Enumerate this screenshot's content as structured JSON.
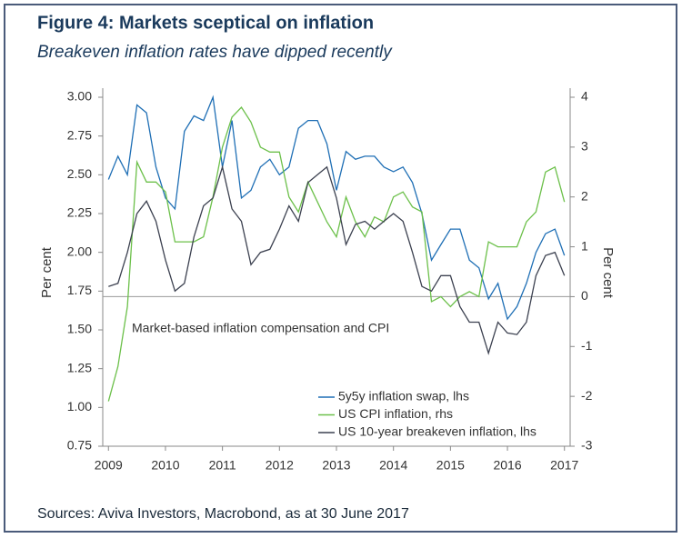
{
  "chart_data": {
    "type": "line",
    "title": "Figure 4: Markets sceptical on inflation",
    "subtitle": "Breakeven inflation rates have dipped recently",
    "annotation": "Market-based inflation compensation and CPI",
    "source": "Sources: Aviva Investors, Macrobond, as at 30 June 2017",
    "ylabel": "Per cent",
    "y2label": "Per cent",
    "xlim": [
      2008.9,
      2017.1
    ],
    "xticks": [
      2009,
      2010,
      2011,
      2012,
      2013,
      2014,
      2015,
      2016,
      2017
    ],
    "ylim": [
      0.75,
      3.0
    ],
    "yticks": [
      {
        "value": 0.75,
        "label": "0.75"
      },
      {
        "value": 1.0,
        "label": "1.00"
      },
      {
        "value": 1.25,
        "label": "1.25"
      },
      {
        "value": 1.5,
        "label": "1.50"
      },
      {
        "value": 1.75,
        "label": "1.75"
      },
      {
        "value": 2.0,
        "label": "2.00"
      },
      {
        "value": 2.25,
        "label": "2.25"
      },
      {
        "value": 2.5,
        "label": "2.50"
      },
      {
        "value": 2.75,
        "label": "2.75"
      },
      {
        "value": 3.0,
        "label": "3.00"
      }
    ],
    "y2lim": [
      -3,
      4
    ],
    "y2ticks": [
      -3,
      -2,
      -1,
      0,
      1,
      2,
      3,
      4
    ],
    "zero_line": true,
    "legend": "lower right",
    "x": [
      2009,
      2009.167,
      2009.333,
      2009.5,
      2009.667,
      2009.833,
      2010,
      2010.167,
      2010.333,
      2010.5,
      2010.667,
      2010.833,
      2011,
      2011.167,
      2011.333,
      2011.5,
      2011.667,
      2011.833,
      2012,
      2012.167,
      2012.333,
      2012.5,
      2012.667,
      2012.833,
      2013,
      2013.167,
      2013.333,
      2013.5,
      2013.667,
      2013.833,
      2014,
      2014.167,
      2014.333,
      2014.5,
      2014.667,
      2014.833,
      2015,
      2015.167,
      2015.333,
      2015.5,
      2015.667,
      2015.833,
      2016,
      2016.167,
      2016.333,
      2016.5,
      2016.667,
      2016.833,
      2017
    ],
    "series": [
      {
        "name": "5y5y inflation swap, lhs",
        "color": "#1f6fb5",
        "axis": "y",
        "values": [
          2.47,
          2.62,
          2.5,
          2.95,
          2.9,
          2.55,
          2.35,
          2.28,
          2.78,
          2.88,
          2.85,
          3.0,
          2.55,
          2.85,
          2.35,
          2.4,
          2.55,
          2.6,
          2.5,
          2.55,
          2.8,
          2.85,
          2.85,
          2.7,
          2.4,
          2.65,
          2.6,
          2.62,
          2.62,
          2.55,
          2.52,
          2.55,
          2.45,
          2.25,
          1.95,
          2.05,
          2.15,
          2.15,
          1.95,
          1.9,
          1.7,
          1.8,
          1.57,
          1.65,
          1.8,
          2.0,
          2.12,
          2.15,
          1.98
        ]
      },
      {
        "name": "US CPI inflation, rhs",
        "color": "#6cc04a",
        "axis": "y2",
        "values": [
          -2.1,
          -1.4,
          -0.2,
          2.7,
          2.3,
          2.3,
          2.1,
          1.1,
          1.1,
          1.1,
          1.2,
          2.0,
          3.0,
          3.6,
          3.8,
          3.5,
          3.0,
          2.9,
          2.9,
          2.0,
          1.7,
          2.3,
          1.9,
          1.5,
          1.2,
          2.0,
          1.5,
          1.2,
          1.6,
          1.5,
          2.0,
          2.1,
          1.8,
          1.7,
          -0.1,
          0.0,
          -0.2,
          0.0,
          0.1,
          0.0,
          1.1,
          1.0,
          1.0,
          1.0,
          1.5,
          1.7,
          2.5,
          2.6,
          1.9
        ]
      },
      {
        "name": "US 10-year breakeven inflation, lhs",
        "color": "#3c4150",
        "axis": "y",
        "values": [
          1.78,
          1.8,
          2.0,
          2.25,
          2.33,
          2.2,
          1.95,
          1.75,
          1.8,
          2.1,
          2.3,
          2.35,
          2.55,
          2.28,
          2.2,
          1.92,
          2.0,
          2.02,
          2.15,
          2.3,
          2.2,
          2.45,
          2.5,
          2.55,
          2.35,
          2.05,
          2.18,
          2.2,
          2.15,
          2.2,
          2.25,
          2.2,
          2.0,
          1.78,
          1.75,
          1.85,
          1.85,
          1.65,
          1.55,
          1.55,
          1.35,
          1.55,
          1.48,
          1.47,
          1.55,
          1.85,
          1.98,
          2.0,
          1.85
        ]
      }
    ]
  }
}
